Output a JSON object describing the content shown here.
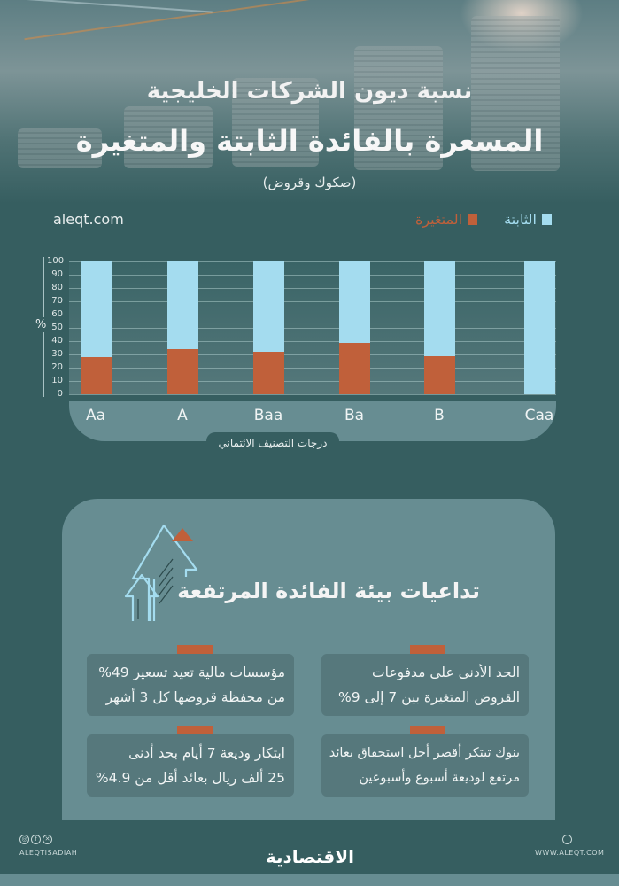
{
  "header": {
    "title_line1": "نسبة ديون الشركات الخليجية",
    "title_line2": "المسعرة بالفائدة الثابتة والمتغيرة",
    "subtitle": "(صكوك وقروض)"
  },
  "site_label": "aleqt.com",
  "legend": {
    "fixed": {
      "label": "الثابتة",
      "color": "#a4dcef"
    },
    "variable": {
      "label": "المتغيرة",
      "color": "#c0603a"
    }
  },
  "colors": {
    "background": "#365e60",
    "panel": "#678d92",
    "card": "#56787c",
    "accent_orange": "#c0603a",
    "accent_blue": "#a4dcef"
  },
  "chart_data": {
    "type": "bar",
    "stacked": true,
    "title": "نسبة ديون الشركات الخليجية المسعرة بالفائدة الثابتة والمتغيرة (صكوك وقروض)",
    "categories": [
      "Aa",
      "A",
      "Baa",
      "Ba",
      "B",
      "Caa"
    ],
    "series": [
      {
        "name": "المتغيرة",
        "color": "#c0603a",
        "values": [
          28,
          34,
          32,
          39,
          29,
          0
        ]
      },
      {
        "name": "الثابتة",
        "color": "#a4dcef",
        "values": [
          72,
          66,
          68,
          61,
          71,
          100
        ]
      }
    ],
    "xlabel": "درجات التصنيف الائتماني",
    "ylabel": "%",
    "ylim": [
      0,
      100
    ],
    "yticks": [
      0,
      10,
      20,
      30,
      40,
      50,
      60,
      70,
      80,
      90,
      100
    ],
    "grid": true,
    "legend_position": "top-right"
  },
  "consequences": {
    "title": "تداعيات بيئة الفائدة المرتفعة",
    "cards": [
      {
        "line1": "الحد الأدنى على مدفوعات",
        "line2": "القروض المتغيرة بين 7 إلى 9%"
      },
      {
        "line1": "مؤسسات مالية تعيد تسعير 49%",
        "line2": "من محفظة قروضها كل 3 أشهر"
      },
      {
        "line1": "بنوك تبتكر أقصر أجل استحقاق بعائد",
        "line2": "مرتفع لوديعة أسبوع وأسبوعين"
      },
      {
        "line1": "ابتكار وديعة 7 أيام بحد أدنى",
        "line2": "25 ألف ريال بعائد أقل من 4.9%"
      }
    ]
  },
  "footer": {
    "social_handle": "ALEQTISADIAH",
    "brand": "الاقتصادية",
    "website": "WWW.ALEQT.COM",
    "social_icons": [
      "instagram-icon",
      "facebook-icon",
      "x-icon"
    ]
  }
}
